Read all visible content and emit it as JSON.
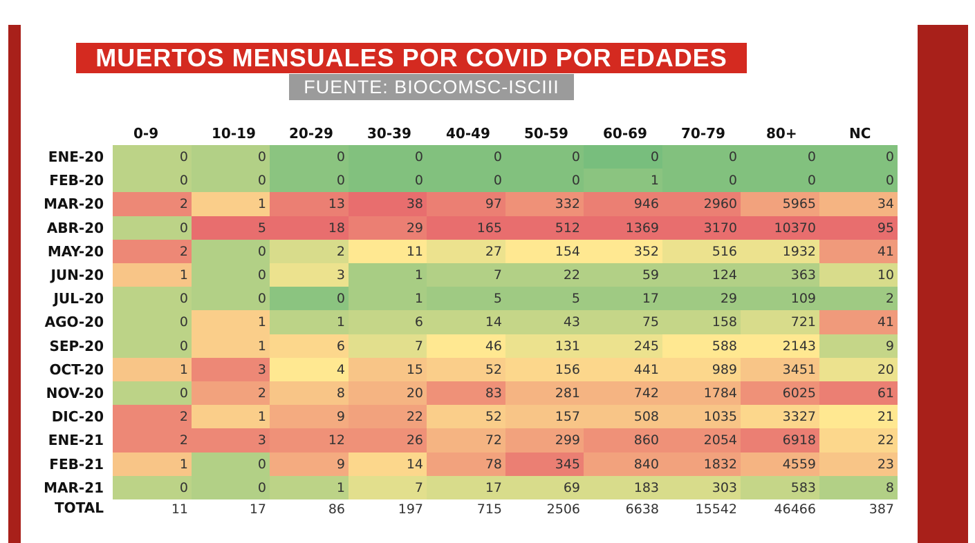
{
  "title": "MUERTOS MENSUALES POR COVID POR EDADES",
  "source": "FUENTE:  BIOCOMSC-ISCIII",
  "chart_data": {
    "type": "table",
    "title": "MUERTOS MENSUALES POR COVID POR EDADES",
    "subtitle": "FUENTE:  BIOCOMSC-ISCIII",
    "columns": [
      "0-9",
      "10-19",
      "20-29",
      "30-39",
      "40-49",
      "50-59",
      "60-69",
      "70-79",
      "80+",
      "NC"
    ],
    "rows": [
      {
        "label": "ENE-20",
        "values": [
          0,
          0,
          0,
          0,
          0,
          0,
          0,
          0,
          0,
          0
        ]
      },
      {
        "label": "FEB-20",
        "values": [
          0,
          0,
          0,
          0,
          0,
          0,
          1,
          0,
          0,
          0
        ]
      },
      {
        "label": "MAR-20",
        "values": [
          2,
          1,
          13,
          38,
          97,
          332,
          946,
          2960,
          5965,
          34
        ]
      },
      {
        "label": "ABR-20",
        "values": [
          0,
          5,
          18,
          29,
          165,
          512,
          1369,
          3170,
          10370,
          95
        ]
      },
      {
        "label": "MAY-20",
        "values": [
          2,
          0,
          2,
          11,
          27,
          154,
          352,
          516,
          1932,
          41
        ]
      },
      {
        "label": "JUN-20",
        "values": [
          1,
          0,
          3,
          1,
          7,
          22,
          59,
          124,
          363,
          10
        ]
      },
      {
        "label": "JUL-20",
        "values": [
          0,
          0,
          0,
          1,
          5,
          5,
          17,
          29,
          109,
          2
        ]
      },
      {
        "label": "AGO-20",
        "values": [
          0,
          1,
          1,
          6,
          14,
          43,
          75,
          158,
          721,
          41
        ]
      },
      {
        "label": "SEP-20",
        "values": [
          0,
          1,
          6,
          7,
          46,
          131,
          245,
          588,
          2143,
          9
        ]
      },
      {
        "label": "OCT-20",
        "values": [
          1,
          3,
          4,
          15,
          52,
          156,
          441,
          989,
          3451,
          20
        ]
      },
      {
        "label": "NOV-20",
        "values": [
          0,
          2,
          8,
          20,
          83,
          281,
          742,
          1784,
          6025,
          61
        ]
      },
      {
        "label": "DIC-20",
        "values": [
          2,
          1,
          9,
          22,
          52,
          157,
          508,
          1035,
          3327,
          21
        ]
      },
      {
        "label": "ENE-21",
        "values": [
          2,
          3,
          12,
          26,
          72,
          299,
          860,
          2054,
          6918,
          22
        ]
      },
      {
        "label": "FEB-21",
        "values": [
          1,
          0,
          9,
          14,
          78,
          345,
          840,
          1832,
          4559,
          23
        ]
      },
      {
        "label": "MAR-21",
        "values": [
          0,
          0,
          1,
          7,
          17,
          69,
          183,
          303,
          583,
          8
        ]
      }
    ],
    "total_label": "TOTAL",
    "totals": [
      11,
      17,
      86,
      197,
      715,
      2506,
      6638,
      15542,
      46466,
      387
    ]
  }
}
